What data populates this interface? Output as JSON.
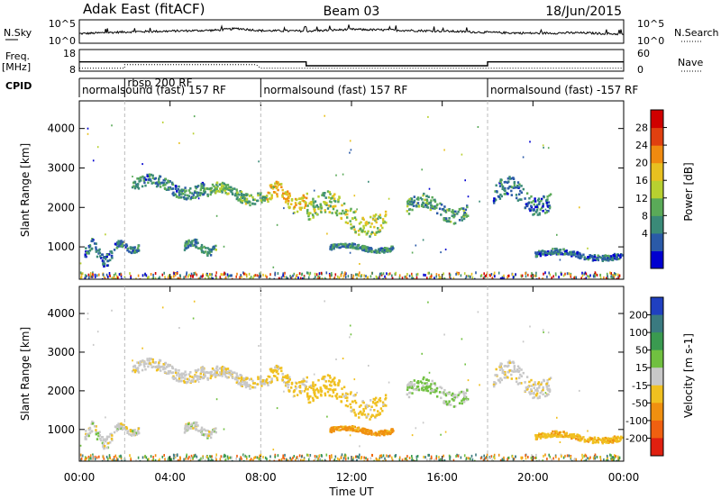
{
  "header": {
    "station": "Adak East (fitACF)",
    "beam": "Beam 03",
    "date": "18/Jun/2015"
  },
  "noise_panel": {
    "left_label": "N.Sky",
    "right_label": "N.Search",
    "left_ticks": [
      "10^5",
      "10^0"
    ],
    "right_ticks": [
      "10^5",
      "10^0"
    ]
  },
  "freq_panel": {
    "left_label_1": "Freq.",
    "left_label_2": "[MHz]",
    "right_label": "Nave",
    "left_ticks": [
      "18",
      "8"
    ],
    "right_ticks": [
      "60",
      "0"
    ]
  },
  "cpid": {
    "label": "CPID",
    "segments": [
      {
        "start_hour": 0,
        "text": "normalsound (fast) 157 RF"
      },
      {
        "start_hour": 2,
        "text": "rbsp 200 RF"
      },
      {
        "start_hour": 8,
        "text": "normalsound (fast) 157 RF"
      },
      {
        "start_hour": 18,
        "text": "normalsound (fast) -157 RF"
      }
    ]
  },
  "power_colorbar": {
    "label": "Power [dB]",
    "ticks": [
      "28",
      "24",
      "20",
      "16",
      "12",
      "8",
      "4"
    ],
    "colors": [
      "#0000d0",
      "#2a5aa8",
      "#3a8a78",
      "#5aaa58",
      "#b8d030",
      "#e8c020",
      "#f08a10",
      "#e04010",
      "#d00000"
    ]
  },
  "velocity_colorbar": {
    "label": "Velocity [m s-1]",
    "ticks": [
      "200",
      "100",
      "50",
      "15",
      "-15",
      "-50",
      "-100",
      "-200"
    ],
    "colors": [
      "#2040c0",
      "#3a7a80",
      "#3a9a50",
      "#70c040",
      "#c8c8c8",
      "#f0c020",
      "#f09010",
      "#f06010",
      "#e02010"
    ]
  },
  "chart_data": {
    "type": "heatmap",
    "xlabel": "Time UT",
    "ylabel": "Slant Range [km]",
    "x_ticks": [
      "00:00",
      "04:00",
      "08:00",
      "12:00",
      "16:00",
      "20:00",
      "00:00"
    ],
    "x_range_hours": [
      0,
      24
    ],
    "y_ticks": [
      1000,
      2000,
      3000,
      4000
    ],
    "y_range_km": [
      180,
      4700
    ],
    "grid": false,
    "noise_sky_series": [
      {
        "hour": 0,
        "value": 2.0
      },
      {
        "hour": 2,
        "value": 2.4
      },
      {
        "hour": 4,
        "value": 2.6
      },
      {
        "hour": 6,
        "value": 2.8
      },
      {
        "hour": 7,
        "value": 3.2
      },
      {
        "hour": 8,
        "value": 2.7
      },
      {
        "hour": 10,
        "value": 2.6
      },
      {
        "hour": 12,
        "value": 3.0
      },
      {
        "hour": 14,
        "value": 2.8
      },
      {
        "hour": 16,
        "value": 2.6
      },
      {
        "hour": 18,
        "value": 2.3
      },
      {
        "hour": 20,
        "value": 2.1
      },
      {
        "hour": 22,
        "value": 2.2
      },
      {
        "hour": 24,
        "value": 1.9
      }
    ],
    "freq_series": [
      {
        "hour": 0,
        "mhz": 12.3
      },
      {
        "hour": 10,
        "mhz": 12.3
      },
      {
        "hour": 10,
        "mhz": 10.5
      },
      {
        "hour": 18,
        "mhz": 10.5
      },
      {
        "hour": 18,
        "mhz": 12.3
      },
      {
        "hour": 24,
        "mhz": 12.3
      }
    ],
    "nave_series": [
      {
        "hour": 0,
        "value": 8
      },
      {
        "hour": 2,
        "value": 8
      },
      {
        "hour": 2,
        "value": 18
      },
      {
        "hour": 7.8,
        "value": 18
      },
      {
        "hour": 8,
        "value": 8
      },
      {
        "hour": 24,
        "value": 8
      }
    ],
    "echo_regions": [
      {
        "t0": 0.2,
        "t1": 1.4,
        "r0": 600,
        "r1": 1150,
        "power": 6,
        "velocity": 0
      },
      {
        "t0": 1.5,
        "t1": 2.6,
        "r0": 900,
        "r1": 1150,
        "power": 7,
        "velocity": 0
      },
      {
        "t0": 4.6,
        "t1": 6.0,
        "r0": 850,
        "r1": 1200,
        "power": 9,
        "velocity": 0
      },
      {
        "t0": 2.3,
        "t1": 5.5,
        "r0": 2300,
        "r1": 2800,
        "power": 8,
        "velocity": -5
      },
      {
        "t0": 5.5,
        "t1": 8.2,
        "r0": 2150,
        "r1": 2600,
        "power": 12,
        "velocity": -10
      },
      {
        "t0": 8.2,
        "t1": 10.0,
        "r0": 1950,
        "r1": 2600,
        "power": 18,
        "velocity": -20
      },
      {
        "t0": 10.0,
        "t1": 13.5,
        "r0": 1400,
        "r1": 2300,
        "power": 14,
        "velocity": -30
      },
      {
        "t0": 11.0,
        "t1": 13.8,
        "r0": 900,
        "r1": 1100,
        "power": 8,
        "velocity": -60
      },
      {
        "t0": 14.4,
        "t1": 17.1,
        "r0": 1700,
        "r1": 2300,
        "power": 10,
        "velocity": 20
      },
      {
        "t0": 18.2,
        "t1": 20.8,
        "r0": 1900,
        "r1": 2700,
        "power": 7,
        "velocity": -5
      },
      {
        "t0": 20.0,
        "t1": 23.9,
        "r0": 700,
        "r1": 950,
        "power": 6,
        "velocity": -40
      }
    ]
  }
}
